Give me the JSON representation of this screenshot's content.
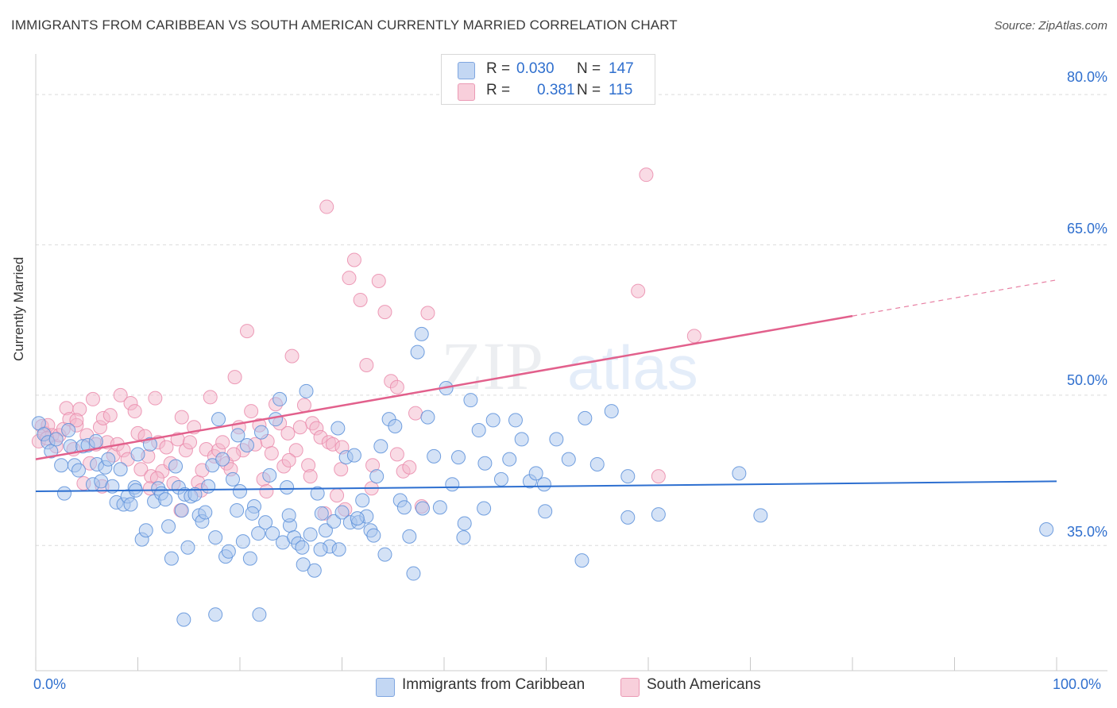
{
  "title": "IMMIGRANTS FROM CARIBBEAN VS SOUTH AMERICAN CURRENTLY MARRIED CORRELATION CHART",
  "source": "Source: ZipAtlas.com",
  "watermark": {
    "zip": "ZIP",
    "atlas": "atlas"
  },
  "legend": {
    "row1": {
      "r_label": "R =",
      "r_value": "0.030",
      "n_label": "N =",
      "n_value": "147",
      "color": "#a9c6ee"
    },
    "row2": {
      "r_label": "R =",
      "r_value": "0.381",
      "n_label": "N =",
      "n_value": "115",
      "color": "#f3b8cb"
    }
  },
  "chart_data": {
    "type": "scatter",
    "title": "IMMIGRANTS FROM CARIBBEAN VS SOUTH AMERICAN CURRENTLY MARRIED CORRELATION CHART",
    "xlabel": "",
    "ylabel": "Currently Married",
    "xlim": [
      0,
      100
    ],
    "ylim": [
      22.5,
      83.5
    ],
    "x_tick_labels": [
      "0.0%",
      "100.0%"
    ],
    "y_ticks": [
      35.0,
      50.0,
      65.0,
      80.0
    ],
    "y_tick_labels": [
      "35.0%",
      "50.0%",
      "65.0%",
      "80.0%"
    ],
    "grid": true,
    "legend_position": "top-center",
    "series": [
      {
        "name": "Immigrants from Caribbean",
        "color": "#5b8fd9",
        "fill": "#a9c6ee",
        "trend": {
          "x": [
            0,
            100
          ],
          "y": [
            40.4,
            41.4
          ],
          "style": "solid",
          "line_color": "#2d6fd0"
        },
        "points": [
          [
            0.3,
            47.2
          ],
          [
            0.8,
            46.1
          ],
          [
            1.2,
            45.3
          ],
          [
            1.5,
            44.4
          ],
          [
            2.0,
            45.6
          ],
          [
            2.5,
            43.0
          ],
          [
            2.8,
            40.2
          ],
          [
            3.4,
            44.9
          ],
          [
            3.8,
            43.0
          ],
          [
            4.2,
            42.5
          ],
          [
            4.6,
            44.9
          ],
          [
            5.1,
            45.0
          ],
          [
            5.6,
            41.1
          ],
          [
            6.0,
            43.1
          ],
          [
            6.4,
            41.4
          ],
          [
            6.8,
            42.8
          ],
          [
            7.1,
            43.6
          ],
          [
            7.5,
            40.9
          ],
          [
            7.9,
            39.3
          ],
          [
            8.3,
            42.6
          ],
          [
            8.6,
            39.1
          ],
          [
            9.0,
            39.9
          ],
          [
            9.3,
            39.1
          ],
          [
            9.7,
            40.8
          ],
          [
            10.0,
            44.1
          ],
          [
            10.4,
            35.6
          ],
          [
            10.8,
            36.5
          ],
          [
            11.2,
            45.1
          ],
          [
            11.6,
            39.4
          ],
          [
            12.0,
            40.7
          ],
          [
            12.3,
            40.2
          ],
          [
            12.7,
            39.6
          ],
          [
            13.0,
            36.9
          ],
          [
            13.3,
            33.7
          ],
          [
            13.7,
            42.9
          ],
          [
            14.0,
            40.8
          ],
          [
            14.3,
            38.5
          ],
          [
            14.6,
            40.1
          ],
          [
            14.9,
            34.8
          ],
          [
            15.2,
            39.9
          ],
          [
            15.6,
            40.1
          ],
          [
            16.0,
            38.0
          ],
          [
            16.3,
            37.4
          ],
          [
            16.6,
            38.3
          ],
          [
            16.9,
            40.9
          ],
          [
            17.3,
            43.0
          ],
          [
            17.6,
            35.8
          ],
          [
            17.9,
            47.6
          ],
          [
            18.3,
            43.6
          ],
          [
            18.6,
            33.9
          ],
          [
            18.9,
            34.4
          ],
          [
            19.3,
            41.6
          ],
          [
            19.7,
            38.5
          ],
          [
            20.0,
            40.4
          ],
          [
            20.3,
            35.4
          ],
          [
            20.7,
            45.0
          ],
          [
            21.0,
            33.7
          ],
          [
            21.4,
            38.9
          ],
          [
            21.8,
            36.2
          ],
          [
            22.1,
            46.3
          ],
          [
            22.5,
            37.3
          ],
          [
            22.9,
            42.0
          ],
          [
            23.2,
            36.2
          ],
          [
            23.5,
            47.6
          ],
          [
            23.9,
            49.6
          ],
          [
            24.2,
            35.3
          ],
          [
            24.6,
            40.8
          ],
          [
            24.9,
            37.0
          ],
          [
            25.3,
            35.8
          ],
          [
            25.7,
            35.2
          ],
          [
            26.1,
            34.8
          ],
          [
            26.5,
            50.4
          ],
          [
            26.9,
            36.1
          ],
          [
            27.3,
            32.5
          ],
          [
            27.6,
            40.2
          ],
          [
            28.0,
            38.2
          ],
          [
            28.4,
            36.5
          ],
          [
            28.8,
            34.9
          ],
          [
            29.2,
            37.4
          ],
          [
            29.6,
            46.7
          ],
          [
            30.0,
            38.3
          ],
          [
            30.4,
            43.8
          ],
          [
            30.8,
            37.3
          ],
          [
            31.2,
            44.0
          ],
          [
            31.6,
            37.3
          ],
          [
            32.0,
            39.5
          ],
          [
            32.4,
            37.9
          ],
          [
            32.8,
            36.5
          ],
          [
            33.4,
            41.9
          ],
          [
            33.8,
            44.9
          ],
          [
            34.2,
            34.1
          ],
          [
            34.6,
            47.6
          ],
          [
            35.2,
            46.9
          ],
          [
            35.7,
            39.5
          ],
          [
            36.1,
            38.8
          ],
          [
            36.6,
            35.9
          ],
          [
            37.0,
            32.2
          ],
          [
            37.4,
            54.3
          ],
          [
            37.8,
            56.1
          ],
          [
            38.4,
            47.8
          ],
          [
            39.0,
            43.9
          ],
          [
            39.6,
            38.8
          ],
          [
            40.2,
            50.7
          ],
          [
            40.8,
            41.1
          ],
          [
            41.4,
            43.8
          ],
          [
            42.0,
            37.2
          ],
          [
            42.6,
            49.5
          ],
          [
            43.4,
            46.5
          ],
          [
            44.0,
            43.2
          ],
          [
            44.8,
            47.5
          ],
          [
            45.6,
            41.6
          ],
          [
            46.4,
            43.6
          ],
          [
            47.0,
            47.5
          ],
          [
            47.6,
            45.6
          ],
          [
            48.4,
            41.4
          ],
          [
            49.0,
            42.2
          ],
          [
            49.8,
            41.1
          ],
          [
            51.0,
            45.6
          ],
          [
            52.2,
            43.6
          ],
          [
            53.8,
            47.7
          ],
          [
            55.0,
            43.1
          ],
          [
            56.4,
            48.4
          ],
          [
            58.0,
            41.9
          ],
          [
            3.2,
            46.5
          ],
          [
            5.9,
            45.4
          ],
          [
            9.8,
            40.5
          ],
          [
            14.5,
            27.6
          ],
          [
            17.6,
            28.1
          ],
          [
            21.9,
            28.1
          ],
          [
            24.8,
            38.0
          ],
          [
            26.2,
            33.1
          ],
          [
            27.9,
            34.6
          ],
          [
            29.7,
            34.6
          ],
          [
            31.5,
            37.7
          ],
          [
            33.1,
            36.0
          ],
          [
            37.9,
            38.7
          ],
          [
            41.9,
            35.8
          ],
          [
            43.9,
            38.7
          ],
          [
            49.9,
            38.4
          ],
          [
            53.5,
            33.5
          ],
          [
            58.0,
            37.8
          ],
          [
            61.0,
            38.1
          ],
          [
            68.9,
            42.2
          ],
          [
            71.0,
            38.0
          ],
          [
            99.0,
            36.6
          ],
          [
            21.2,
            38.2
          ],
          [
            19.8,
            46.0
          ]
        ]
      },
      {
        "name": "South Americans",
        "color": "#ea8bab",
        "fill": "#f3b8cb",
        "trend": {
          "x": [
            0,
            80
          ],
          "y": [
            43.6,
            57.9
          ],
          "style": "solid",
          "line_color": "#e2608c",
          "extension": {
            "x": [
              80,
              100
            ],
            "y": [
              57.9,
              61.5
            ],
            "style": "dashed"
          }
        },
        "points": [
          [
            0.3,
            45.4
          ],
          [
            0.6,
            46.9
          ],
          [
            0.9,
            46.2
          ],
          [
            1.2,
            47.0
          ],
          [
            1.6,
            46.0
          ],
          [
            2.0,
            44.9
          ],
          [
            2.3,
            46.0
          ],
          [
            2.7,
            46.6
          ],
          [
            3.0,
            48.7
          ],
          [
            3.3,
            47.6
          ],
          [
            3.7,
            44.6
          ],
          [
            4.0,
            47.0
          ],
          [
            4.3,
            48.6
          ],
          [
            4.7,
            41.2
          ],
          [
            5.0,
            46.0
          ],
          [
            5.3,
            43.2
          ],
          [
            5.6,
            49.6
          ],
          [
            5.9,
            45.1
          ],
          [
            6.3,
            46.8
          ],
          [
            6.6,
            47.7
          ],
          [
            7.0,
            45.3
          ],
          [
            7.3,
            48.0
          ],
          [
            7.6,
            44.0
          ],
          [
            8.0,
            45.1
          ],
          [
            8.3,
            50.0
          ],
          [
            8.6,
            44.5
          ],
          [
            9.0,
            43.6
          ],
          [
            9.3,
            49.2
          ],
          [
            9.7,
            48.4
          ],
          [
            10.0,
            46.2
          ],
          [
            10.3,
            42.6
          ],
          [
            10.7,
            45.9
          ],
          [
            11.0,
            43.9
          ],
          [
            11.3,
            41.9
          ],
          [
            11.7,
            49.7
          ],
          [
            12.0,
            45.3
          ],
          [
            12.4,
            42.4
          ],
          [
            12.8,
            44.8
          ],
          [
            13.2,
            43.2
          ],
          [
            13.5,
            41.2
          ],
          [
            13.9,
            45.6
          ],
          [
            14.3,
            47.8
          ],
          [
            14.7,
            44.5
          ],
          [
            15.1,
            45.3
          ],
          [
            15.5,
            46.8
          ],
          [
            15.9,
            41.3
          ],
          [
            16.3,
            42.5
          ],
          [
            16.7,
            44.6
          ],
          [
            17.1,
            49.8
          ],
          [
            17.5,
            43.9
          ],
          [
            17.9,
            44.5
          ],
          [
            18.3,
            45.3
          ],
          [
            18.7,
            43.2
          ],
          [
            19.1,
            42.6
          ],
          [
            19.5,
            51.8
          ],
          [
            19.9,
            46.8
          ],
          [
            20.3,
            44.5
          ],
          [
            20.7,
            56.4
          ],
          [
            21.1,
            48.4
          ],
          [
            21.5,
            45.1
          ],
          [
            21.9,
            47.0
          ],
          [
            22.3,
            41.6
          ],
          [
            22.7,
            45.4
          ],
          [
            23.1,
            44.2
          ],
          [
            23.5,
            49.1
          ],
          [
            23.9,
            47.2
          ],
          [
            24.3,
            42.9
          ],
          [
            24.7,
            46.2
          ],
          [
            25.1,
            53.9
          ],
          [
            25.5,
            44.5
          ],
          [
            25.9,
            46.8
          ],
          [
            26.3,
            49.0
          ],
          [
            26.7,
            43.0
          ],
          [
            27.1,
            47.2
          ],
          [
            27.5,
            46.7
          ],
          [
            27.9,
            45.8
          ],
          [
            28.3,
            38.2
          ],
          [
            28.7,
            45.3
          ],
          [
            29.1,
            45.1
          ],
          [
            29.5,
            40.0
          ],
          [
            29.9,
            42.6
          ],
          [
            30.3,
            38.6
          ],
          [
            30.7,
            61.7
          ],
          [
            31.2,
            63.5
          ],
          [
            31.8,
            59.5
          ],
          [
            32.4,
            53.0
          ],
          [
            33.0,
            43.0
          ],
          [
            33.6,
            61.4
          ],
          [
            34.2,
            58.3
          ],
          [
            34.8,
            51.4
          ],
          [
            35.4,
            50.8
          ],
          [
            36.0,
            42.4
          ],
          [
            36.6,
            42.8
          ],
          [
            37.2,
            48.2
          ],
          [
            37.8,
            38.9
          ],
          [
            38.4,
            58.2
          ],
          [
            28.5,
            68.8
          ],
          [
            59.0,
            60.4
          ],
          [
            61.0,
            41.9
          ],
          [
            64.5,
            55.9
          ],
          [
            59.8,
            72.0
          ],
          [
            1.1,
            45.7
          ],
          [
            4.0,
            47.5
          ],
          [
            6.5,
            40.9
          ],
          [
            11.9,
            41.7
          ],
          [
            16.2,
            40.5
          ],
          [
            19.4,
            44.1
          ],
          [
            22.6,
            40.4
          ],
          [
            24.8,
            43.5
          ],
          [
            26.9,
            41.9
          ],
          [
            30.0,
            44.8
          ],
          [
            32.9,
            40.7
          ],
          [
            35.4,
            44.1
          ],
          [
            11.2,
            40.7
          ],
          [
            14.2,
            38.5
          ]
        ]
      }
    ]
  },
  "x_axis": {
    "left_label": "0.0%",
    "right_label": "100.0%"
  },
  "bottom_legend": {
    "item1": "Immigrants from Caribbean",
    "item2": "South Americans"
  }
}
